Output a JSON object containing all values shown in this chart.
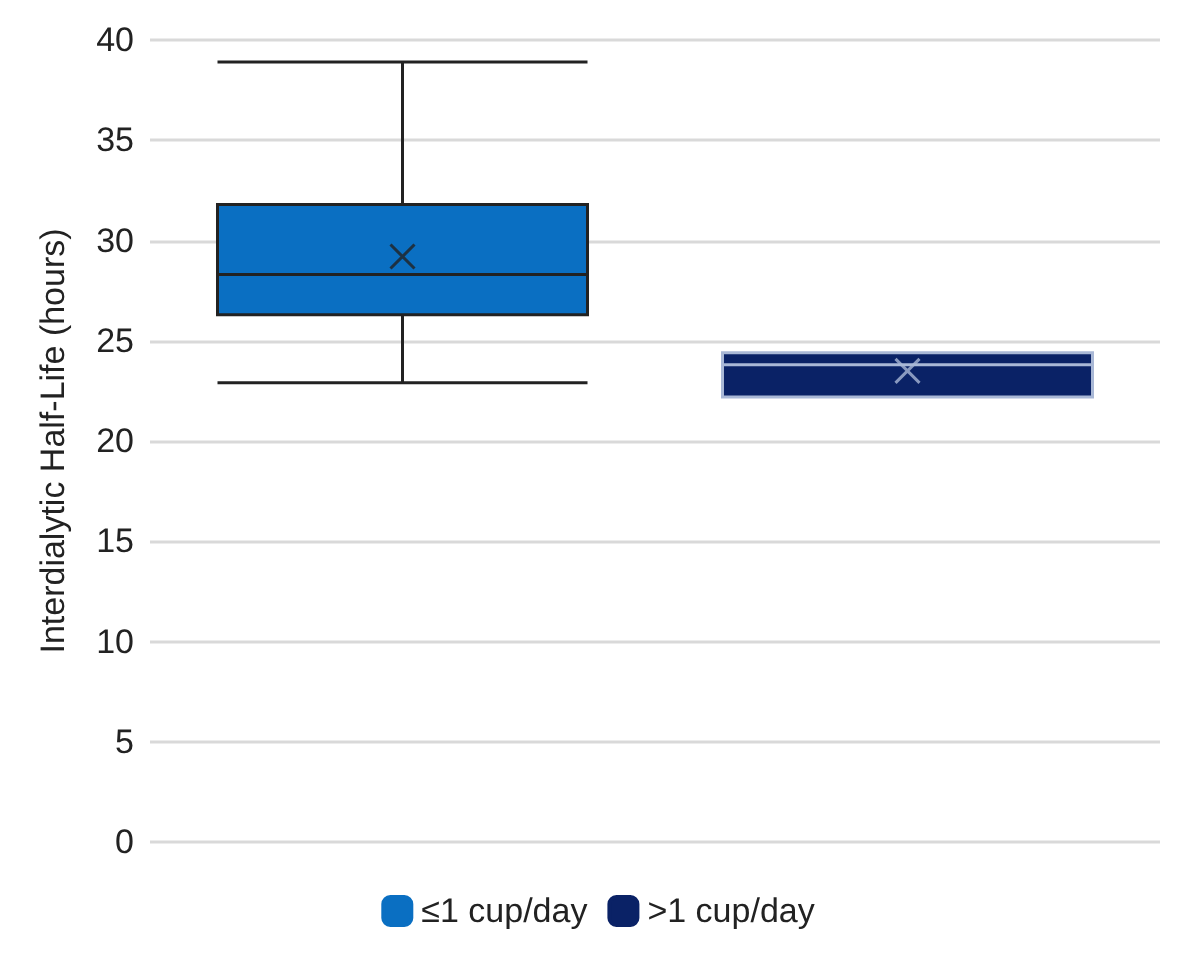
{
  "chart_data": {
    "type": "box",
    "ylabel": "Interdialytic Half-Life (hours)",
    "categories": [
      null,
      null
    ],
    "ylim": [
      0,
      40
    ],
    "yticks": [
      0,
      5,
      10,
      15,
      20,
      25,
      30,
      35,
      40
    ],
    "grid": "y",
    "legend": "bottom",
    "series": [
      {
        "name": "≤1 cup/day",
        "color": "#0a6fc2",
        "boxes": [
          {
            "low": 22.9,
            "q1": 26.3,
            "median": 28.3,
            "q3": 31.8,
            "high": 38.9,
            "mean": 29.2
          },
          null
        ]
      },
      {
        "name": ">1 cup/day",
        "color": "#0a2266",
        "boxes": [
          null,
          {
            "low": 22.2,
            "q1": 22.2,
            "median": 23.8,
            "q3": 24.4,
            "high": 24.4,
            "mean": 23.5
          }
        ]
      }
    ]
  }
}
